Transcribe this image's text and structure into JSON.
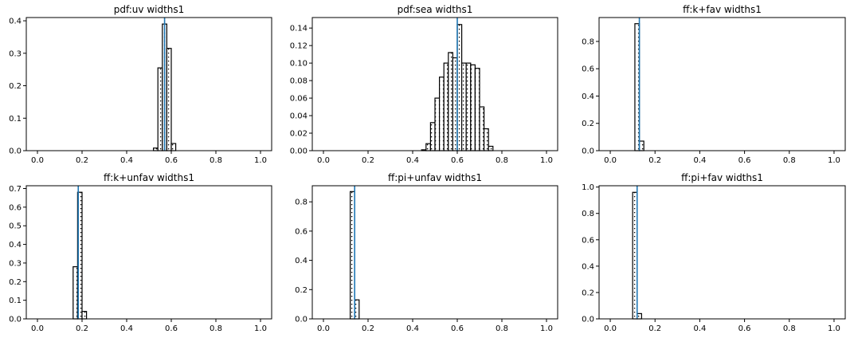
{
  "chart_data": [
    {
      "type": "bar",
      "title": "pdf:uv widths1",
      "xlim": [
        -0.05,
        1.05
      ],
      "ylim": [
        0,
        0.41
      ],
      "xticks": [
        "0.0",
        "0.2",
        "0.4",
        "0.6",
        "0.8",
        "1.0"
      ],
      "yticks": [
        "0.0",
        "0.1",
        "0.2",
        "0.3",
        "0.4"
      ],
      "bin_width": 0.02,
      "bin_start": 0.52,
      "values": [
        0.008,
        0.255,
        0.39,
        0.315,
        0.022
      ],
      "vline": 0.57,
      "hatch": "dots"
    },
    {
      "type": "bar",
      "title": "pdf:sea widths1",
      "xlim": [
        -0.05,
        1.05
      ],
      "ylim": [
        0,
        0.152
      ],
      "xticks": [
        "0.0",
        "0.2",
        "0.4",
        "0.6",
        "0.8",
        "1.0"
      ],
      "yticks": [
        "0.00",
        "0.02",
        "0.04",
        "0.06",
        "0.08",
        "0.10",
        "0.12",
        "0.14"
      ],
      "bin_width": 0.02,
      "bin_start": 0.44,
      "values": [
        0.001,
        0.008,
        0.032,
        0.06,
        0.084,
        0.1,
        0.112,
        0.106,
        0.144,
        0.1,
        0.1,
        0.098,
        0.094,
        0.05,
        0.025,
        0.005
      ],
      "vline": 0.6,
      "hatch": "dots"
    },
    {
      "type": "bar",
      "title": "ff:k+fav widths1",
      "xlim": [
        -0.05,
        1.05
      ],
      "ylim": [
        0,
        0.975
      ],
      "xticks": [
        "0.0",
        "0.2",
        "0.4",
        "0.6",
        "0.8",
        "1.0"
      ],
      "yticks": [
        "0.0",
        "0.2",
        "0.4",
        "0.6",
        "0.8"
      ],
      "bin_width": 0.02,
      "bin_start": 0.11,
      "values": [
        0.93,
        0.07
      ],
      "vline": 0.13,
      "hatch": "dots"
    },
    {
      "type": "bar",
      "title": "ff:k+unfav widths1",
      "xlim": [
        -0.05,
        1.05
      ],
      "ylim": [
        0,
        0.715
      ],
      "xticks": [
        "0.0",
        "0.2",
        "0.4",
        "0.6",
        "0.8",
        "1.0"
      ],
      "yticks": [
        "0.0",
        "0.1",
        "0.2",
        "0.3",
        "0.4",
        "0.5",
        "0.6",
        "0.7"
      ],
      "bin_width": 0.02,
      "bin_start": 0.16,
      "values": [
        0.28,
        0.68,
        0.04
      ],
      "vline": 0.183,
      "hatch": "dots"
    },
    {
      "type": "bar",
      "title": "ff:pi+unfav widths1",
      "xlim": [
        -0.05,
        1.05
      ],
      "ylim": [
        0,
        0.91
      ],
      "xticks": [
        "0.0",
        "0.2",
        "0.4",
        "0.6",
        "0.8",
        "1.0"
      ],
      "yticks": [
        "0.0",
        "0.2",
        "0.4",
        "0.6",
        "0.8"
      ],
      "bin_width": 0.02,
      "bin_start": 0.12,
      "values": [
        0.87,
        0.13
      ],
      "vline": 0.14,
      "hatch": "dots"
    },
    {
      "type": "bar",
      "title": "ff:pi+fav widths1",
      "xlim": [
        -0.05,
        1.05
      ],
      "ylim": [
        0,
        1.01
      ],
      "xticks": [
        "0.0",
        "0.2",
        "0.4",
        "0.6",
        "0.8",
        "1.0"
      ],
      "yticks": [
        "0.0",
        "0.2",
        "0.4",
        "0.6",
        "0.8",
        "1.0"
      ],
      "bin_width": 0.02,
      "bin_start": 0.1,
      "values": [
        0.96,
        0.04
      ],
      "vline": 0.12,
      "hatch": "dots"
    }
  ]
}
